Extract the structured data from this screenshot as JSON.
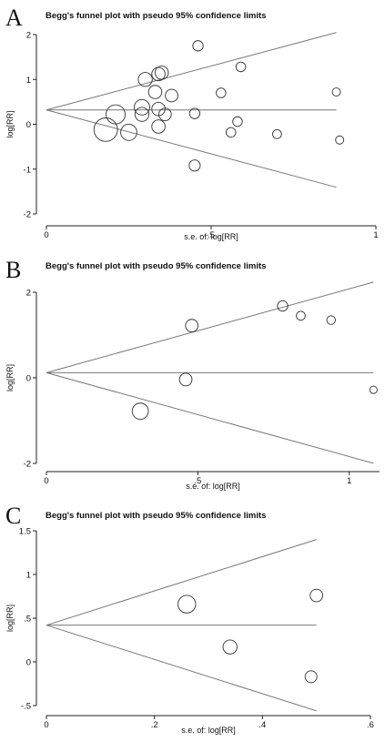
{
  "chart_data": [
    {
      "type": "scatter",
      "panel_label": "A",
      "title": "Begg's funnel plot with pseudo 95% confidence limits",
      "xlabel": "s.e. of: log[RR]",
      "ylabel": "log[RR]",
      "xlim": [
        0,
        1
      ],
      "ylim": [
        -2,
        2
      ],
      "xticks": [
        {
          "v": 0,
          "label": "0"
        },
        {
          "v": 0.5,
          "label": ".5"
        },
        {
          "v": 1,
          "label": "1"
        }
      ],
      "yticks": [
        {
          "v": -2,
          "label": "-2"
        },
        {
          "v": -1,
          "label": "-1"
        },
        {
          "v": 0,
          "label": "0"
        },
        {
          "v": 1,
          "label": "1"
        },
        {
          "v": 2,
          "label": "2"
        }
      ],
      "pooled": 0.32,
      "limits_xmax": 0.88,
      "points": [
        {
          "x": 0.46,
          "y": 1.75,
          "w": 0.4
        },
        {
          "x": 0.59,
          "y": 1.28,
          "w": 0.35
        },
        {
          "x": 0.35,
          "y": 1.15,
          "w": 0.6
        },
        {
          "x": 0.34,
          "y": 1.12,
          "w": 0.6
        },
        {
          "x": 0.3,
          "y": 1.0,
          "w": 0.65
        },
        {
          "x": 0.33,
          "y": 0.72,
          "w": 0.6
        },
        {
          "x": 0.38,
          "y": 0.64,
          "w": 0.55
        },
        {
          "x": 0.53,
          "y": 0.7,
          "w": 0.35
        },
        {
          "x": 0.88,
          "y": 0.72,
          "w": 0.25
        },
        {
          "x": 0.29,
          "y": 0.38,
          "w": 0.75
        },
        {
          "x": 0.34,
          "y": 0.34,
          "w": 0.6
        },
        {
          "x": 0.21,
          "y": 0.22,
          "w": 1.0
        },
        {
          "x": 0.29,
          "y": 0.22,
          "w": 0.65
        },
        {
          "x": 0.36,
          "y": 0.22,
          "w": 0.55
        },
        {
          "x": 0.45,
          "y": 0.24,
          "w": 0.4
        },
        {
          "x": 0.58,
          "y": 0.06,
          "w": 0.35
        },
        {
          "x": 0.34,
          "y": -0.05,
          "w": 0.6
        },
        {
          "x": 0.18,
          "y": -0.12,
          "w": 1.3
        },
        {
          "x": 0.25,
          "y": -0.18,
          "w": 0.8
        },
        {
          "x": 0.56,
          "y": -0.18,
          "w": 0.35
        },
        {
          "x": 0.7,
          "y": -0.22,
          "w": 0.3
        },
        {
          "x": 0.89,
          "y": -0.35,
          "w": 0.25
        },
        {
          "x": 0.45,
          "y": -0.92,
          "w": 0.45
        }
      ]
    },
    {
      "type": "scatter",
      "panel_label": "B",
      "title": "Begg's funnel plot with pseudo 95% confidence limits",
      "xlabel": "s.e. of: log[RR]",
      "ylabel": "log[RR]",
      "xlim": [
        0,
        1.1
      ],
      "ylim": [
        -2,
        2
      ],
      "xticks": [
        {
          "v": 0,
          "label": "0"
        },
        {
          "v": 0.5,
          "label": ".5"
        },
        {
          "v": 1,
          "label": "1"
        }
      ],
      "yticks": [
        {
          "v": -2,
          "label": "-2"
        },
        {
          "v": 0,
          "label": "0"
        },
        {
          "v": 2,
          "label": "2"
        }
      ],
      "pooled": 0.12,
      "limits_xmax": 1.08,
      "points": [
        {
          "x": 0.78,
          "y": 1.68,
          "w": 0.4
        },
        {
          "x": 0.84,
          "y": 1.45,
          "w": 0.3
        },
        {
          "x": 0.94,
          "y": 1.35,
          "w": 0.28
        },
        {
          "x": 0.48,
          "y": 1.22,
          "w": 0.55
        },
        {
          "x": 0.46,
          "y": -0.04,
          "w": 0.55
        },
        {
          "x": 1.08,
          "y": -0.28,
          "w": 0.2
        },
        {
          "x": 0.31,
          "y": -0.78,
          "w": 0.8
        }
      ]
    },
    {
      "type": "scatter",
      "panel_label": "C",
      "title": "Begg's funnel plot with pseudo 95% confidence limits",
      "xlabel": "s.e. of: log[RR]",
      "ylabel": "log[RR]",
      "xlim": [
        0,
        0.6
      ],
      "ylim": [
        -0.5,
        1.5
      ],
      "xticks": [
        {
          "v": 0,
          "label": "0"
        },
        {
          "v": 0.2,
          "label": ".2"
        },
        {
          "v": 0.4,
          "label": ".4"
        },
        {
          "v": 0.6,
          "label": ".6"
        }
      ],
      "yticks": [
        {
          "v": -0.5,
          "label": "-.5"
        },
        {
          "v": 0,
          "label": "0"
        },
        {
          "v": 0.5,
          "label": ".5"
        },
        {
          "v": 1,
          "label": "1"
        },
        {
          "v": 1.5,
          "label": "1.5"
        }
      ],
      "pooled": 0.42,
      "limits_xmax": 0.5,
      "points": [
        {
          "x": 0.26,
          "y": 0.66,
          "w": 0.9
        },
        {
          "x": 0.5,
          "y": 0.76,
          "w": 0.55
        },
        {
          "x": 0.34,
          "y": 0.17,
          "w": 0.65
        },
        {
          "x": 0.49,
          "y": -0.17,
          "w": 0.5
        }
      ]
    }
  ]
}
